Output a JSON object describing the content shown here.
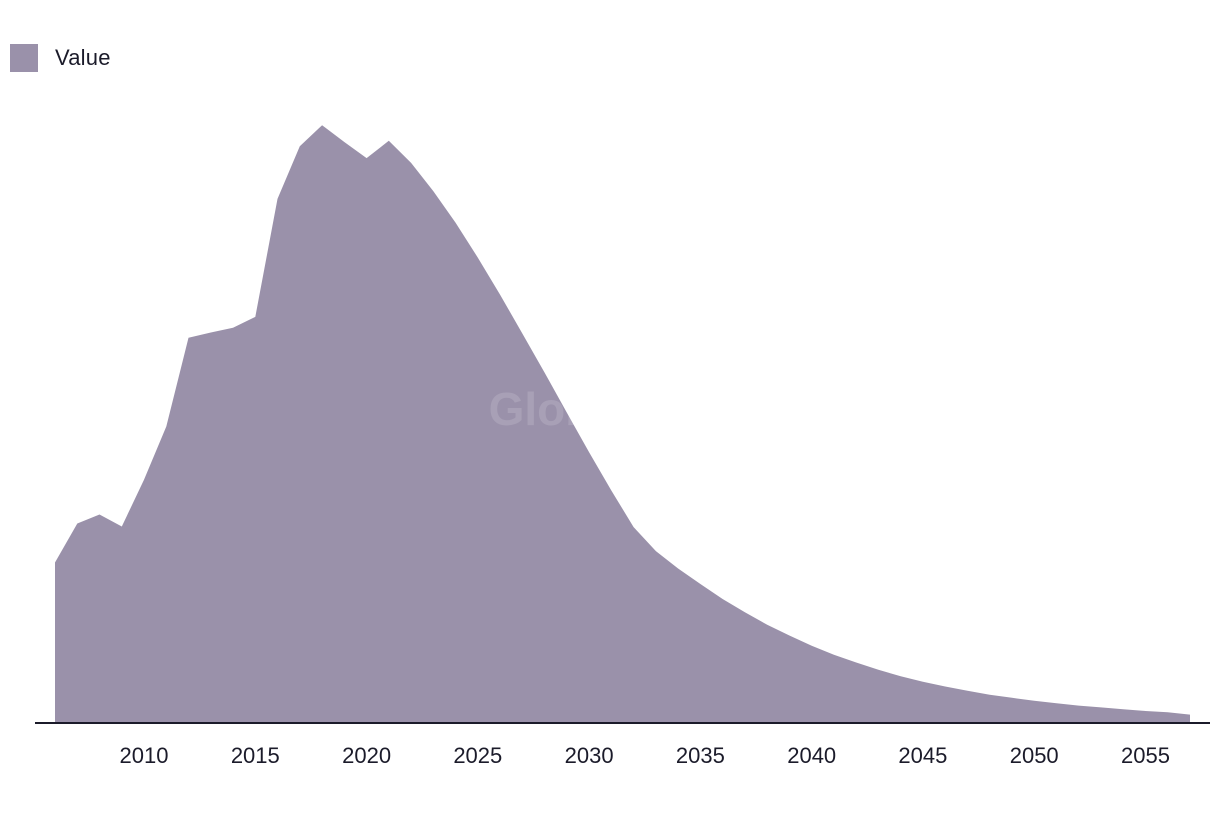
{
  "legend": {
    "label": "Value"
  },
  "watermark": "GlobalData",
  "colors": {
    "area": "#9a91aa",
    "axis": "#1b1b2a",
    "text": "#1b1b2a"
  },
  "chart_data": {
    "type": "area",
    "title": "",
    "xlabel": "",
    "ylabel": "",
    "xlim": [
      2006,
      2057
    ],
    "ylim": [
      0,
      100
    ],
    "grid": false,
    "legend_position": "top-left",
    "x_ticks": [
      2010,
      2015,
      2020,
      2025,
      2030,
      2035,
      2040,
      2045,
      2050,
      2055
    ],
    "series": [
      {
        "name": "Value",
        "x": [
          2006,
          2007,
          2008,
          2009,
          2010,
          2011,
          2012,
          2013,
          2014,
          2015,
          2016,
          2017,
          2018,
          2019,
          2020,
          2021,
          2022,
          2023,
          2024,
          2025,
          2026,
          2027,
          2028,
          2029,
          2030,
          2031,
          2032,
          2033,
          2034,
          2035,
          2036,
          2037,
          2038,
          2039,
          2040,
          2041,
          2042,
          2043,
          2044,
          2045,
          2046,
          2047,
          2048,
          2049,
          2050,
          2051,
          2052,
          2053,
          2054,
          2055,
          2056,
          2057
        ],
        "values": [
          26.8,
          33.3,
          34.8,
          32.8,
          40.6,
          49.5,
          64.3,
          65.2,
          66.0,
          67.8,
          87.5,
          96.3,
          99.8,
          97.0,
          94.3,
          97.2,
          93.5,
          88.8,
          83.5,
          77.7,
          71.5,
          65.0,
          58.5,
          51.8,
          45.2,
          38.8,
          32.7,
          28.7,
          25.8,
          23.2,
          20.7,
          18.5,
          16.4,
          14.6,
          12.9,
          11.4,
          10.1,
          8.9,
          7.8,
          6.9,
          6.1,
          5.4,
          4.7,
          4.2,
          3.7,
          3.3,
          2.9,
          2.6,
          2.3,
          2.0,
          1.8,
          1.4
        ]
      }
    ]
  }
}
